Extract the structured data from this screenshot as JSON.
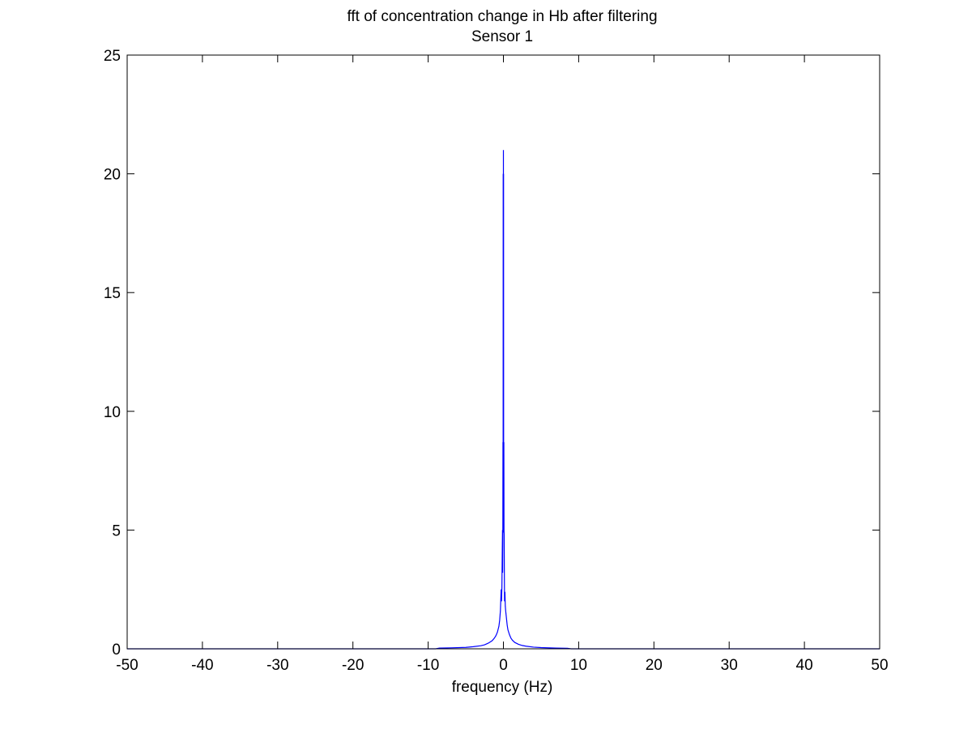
{
  "chart_data": {
    "type": "line",
    "title": "fft of concentration change in Hb after filtering",
    "subtitle": "Sensor 1",
    "xlabel": "frequency (Hz)",
    "ylabel": "",
    "xlim": [
      -50,
      50
    ],
    "ylim": [
      0,
      25
    ],
    "xticks": [
      -50,
      -40,
      -30,
      -20,
      -10,
      0,
      10,
      20,
      30,
      40,
      50
    ],
    "xtick_labels": [
      "-50",
      "-40",
      "-30",
      "-20",
      "-10",
      "0",
      "10",
      "20",
      "30",
      "40",
      "50"
    ],
    "yticks": [
      0,
      5,
      10,
      15,
      20,
      25
    ],
    "ytick_labels": [
      "0",
      "5",
      "10",
      "15",
      "20",
      "25"
    ],
    "grid": false,
    "box": true,
    "series": [
      {
        "color": "#0000ff",
        "x": [
          -50,
          -20,
          -9,
          -8.5,
          -7,
          -5,
          -4,
          -3,
          -2.5,
          -2,
          -1.5,
          -1.2,
          -1,
          -0.8,
          -0.6,
          -0.5,
          -0.4,
          -0.3,
          -0.25,
          -0.2,
          -0.15,
          -0.12,
          -0.1,
          -0.08,
          -0.06,
          -0.05,
          -0.04,
          -0.03,
          -0.02,
          -0.01,
          0,
          0.01,
          0.02,
          0.03,
          0.04,
          0.05,
          0.06,
          0.08,
          0.1,
          0.12,
          0.15,
          0.2,
          0.25,
          0.3,
          0.4,
          0.5,
          0.6,
          0.8,
          1,
          1.2,
          1.5,
          2,
          2.5,
          3,
          4,
          5,
          7,
          8.5,
          9,
          20,
          50
        ],
        "y": [
          0,
          0,
          0,
          0.03,
          0.04,
          0.06,
          0.09,
          0.13,
          0.17,
          0.24,
          0.34,
          0.45,
          0.55,
          0.7,
          0.95,
          1.2,
          1.6,
          2.5,
          2.0,
          2.6,
          4.2,
          5.0,
          3.2,
          4.5,
          8.7,
          6.0,
          4.9,
          20.0,
          11.0,
          14.0,
          21.0,
          13.0,
          20.0,
          8.0,
          5.0,
          6.5,
          8.7,
          5.0,
          4.8,
          3.5,
          2.0,
          2.4,
          1.8,
          1.6,
          1.3,
          1.0,
          0.8,
          0.6,
          0.45,
          0.36,
          0.27,
          0.19,
          0.14,
          0.11,
          0.07,
          0.05,
          0.03,
          0.02,
          0,
          0,
          0
        ]
      }
    ]
  }
}
